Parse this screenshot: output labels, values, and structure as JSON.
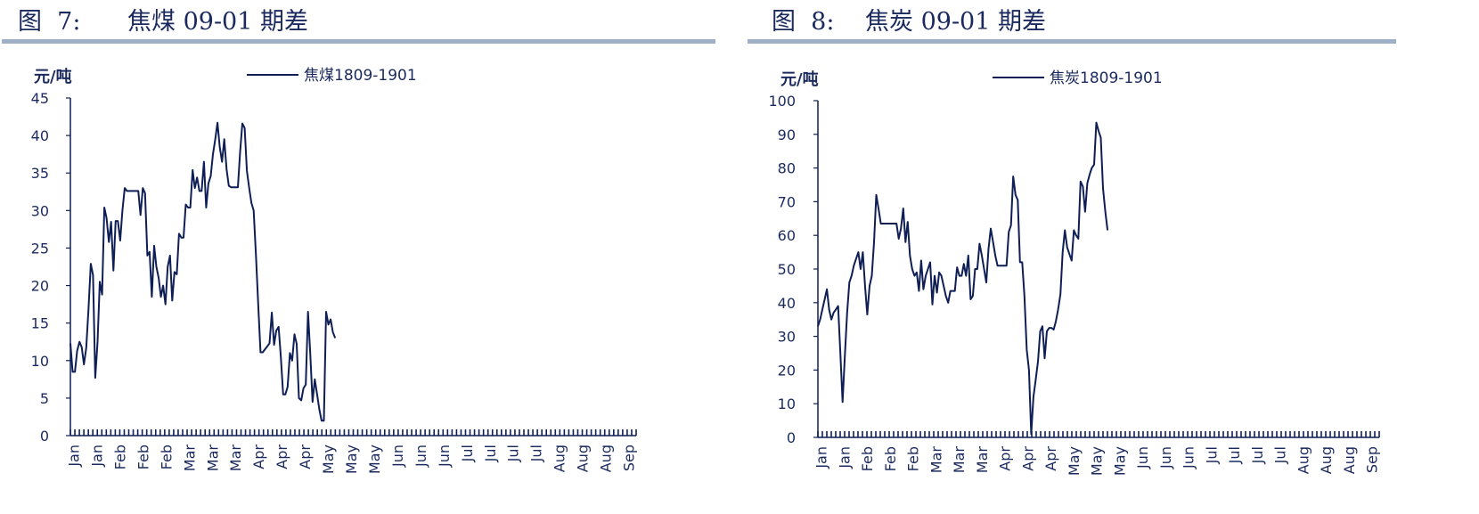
{
  "figures": [
    {
      "number_label": "图  7:",
      "title": "焦煤 09-01 期差"
    },
    {
      "number_label": "图  8:",
      "title": "焦炭 09-01 期差"
    }
  ],
  "colors": {
    "line": "#0f1f56",
    "rule": "#9fb0c6",
    "text": "#1b2a5e"
  },
  "chart_data": [
    {
      "type": "line",
      "title": "焦煤 09-01 期差",
      "ylabel": "元/吨",
      "xlabel": "",
      "ylim": [
        0,
        45
      ],
      "yticks": [
        0,
        5,
        10,
        15,
        20,
        25,
        30,
        35,
        40,
        45
      ],
      "xtick_labels": [
        "Jan",
        "Jan",
        "Feb",
        "Feb",
        "Feb",
        "Mar",
        "Mar",
        "Mar",
        "Apr",
        "Apr",
        "Apr",
        "May",
        "May",
        "May",
        "Jun",
        "Jun",
        "Jun",
        "Jul",
        "Jul",
        "Jul",
        "Jul",
        "Aug",
        "Aug",
        "Aug",
        "Sep"
      ],
      "legend": "top-center",
      "series": [
        {
          "name": "焦煤1809-1901",
          "values": [
            12.3,
            8.5,
            8.5,
            11.3,
            12.5,
            11.8,
            9.5,
            11.7,
            16.8,
            22.9,
            21.4,
            7.7,
            12.5,
            20.5,
            18.8,
            30.4,
            29.0,
            25.8,
            28.5,
            22.0,
            28.6,
            28.6,
            26.0,
            30.0,
            33.0,
            32.6,
            32.6,
            32.6,
            32.6,
            32.6,
            32.6,
            29.4,
            33.0,
            32.3,
            24.0,
            24.5,
            18.5,
            25.3,
            22.5,
            21.0,
            18.5,
            20.0,
            17.5,
            22.5,
            24.0,
            18.0,
            21.8,
            21.5,
            26.9,
            26.4,
            26.4,
            30.8,
            30.4,
            30.4,
            35.4,
            33.0,
            34.4,
            32.6,
            32.6,
            36.5,
            30.4,
            33.6,
            34.6,
            37.5,
            39.5,
            41.7,
            38.5,
            36.5,
            39.5,
            35.5,
            33.3,
            33.1,
            33.1,
            33.1,
            33.1,
            37.8,
            41.6,
            41.0,
            35.3,
            33.0,
            31.0,
            30.0,
            24.0,
            17.5,
            11.1,
            11.1,
            11.5,
            11.9,
            12.3,
            16.4,
            12.1,
            14.0,
            14.5,
            10.5,
            5.5,
            5.5,
            6.5,
            11.0,
            10.0,
            13.5,
            12.2,
            5.0,
            4.7,
            6.3,
            6.8,
            16.5,
            11.0,
            4.5,
            7.5,
            5.5,
            3.5,
            2.0,
            2.0,
            16.5,
            14.8,
            15.5,
            13.8,
            13.0
          ]
        }
      ]
    },
    {
      "type": "line",
      "title": "焦炭 09-01 期差",
      "ylabel": "元/吨",
      "xlabel": "",
      "ylim": [
        0,
        100
      ],
      "yticks": [
        0,
        10,
        20,
        30,
        40,
        50,
        60,
        70,
        80,
        90,
        100
      ],
      "xtick_labels": [
        "Jan",
        "Jan",
        "Feb",
        "Feb",
        "Feb",
        "Mar",
        "Mar",
        "Mar",
        "Apr",
        "Apr",
        "Apr",
        "May",
        "May",
        "May",
        "Jun",
        "Jun",
        "Jun",
        "Jul",
        "Jul",
        "Jul",
        "Jul",
        "Aug",
        "Aug",
        "Aug",
        "Sep"
      ],
      "legend": "top-center",
      "series": [
        {
          "name": "焦炭1809-1901",
          "values": [
            33,
            35,
            38,
            41,
            44,
            38,
            35,
            37,
            38,
            39,
            25,
            10.5,
            24,
            37,
            46,
            48,
            51,
            53,
            55,
            50,
            55,
            45,
            36.5,
            45,
            48,
            58,
            72,
            68,
            63.5,
            63.5,
            63.5,
            63.5,
            63.5,
            63.5,
            63.5,
            63.5,
            59,
            62,
            68,
            58,
            64,
            54,
            50,
            48,
            49,
            43.5,
            52.5,
            44,
            48,
            50,
            52,
            39.5,
            48,
            43,
            49,
            48,
            45,
            42,
            40,
            43.5,
            43.5,
            43.5,
            50.5,
            48,
            48,
            51.5,
            48,
            54,
            41,
            42,
            50,
            50,
            57.5,
            54,
            50,
            46,
            56,
            62,
            58,
            54,
            51,
            51,
            51,
            51,
            51,
            61,
            63,
            77.5,
            72,
            70.5,
            52,
            52,
            42,
            26,
            20,
            1,
            12,
            17,
            22.5,
            31.5,
            33,
            23.5,
            31.5,
            32.5,
            32.5,
            32,
            34.5,
            38,
            42.5,
            55,
            61.5,
            56.5,
            54.5,
            52.5,
            61.5,
            60,
            59,
            76,
            74.5,
            67,
            75.5,
            78,
            80,
            81,
            93.5,
            91,
            89,
            74,
            67,
            61.5
          ]
        }
      ]
    }
  ]
}
